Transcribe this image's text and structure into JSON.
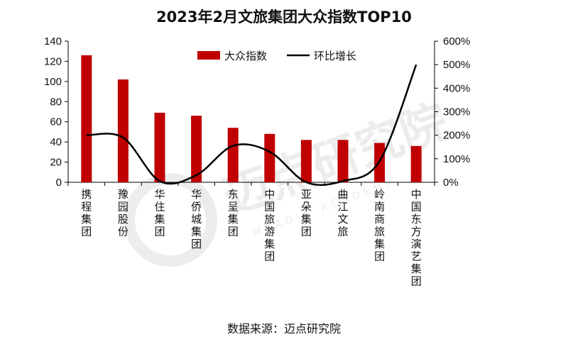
{
  "title": "2023年2月文旅集团大众指数TOP10",
  "source": "数据来源：迈点研究院",
  "watermark": {
    "cn": "迈点研究院",
    "en": "MEADIN ACADEMY"
  },
  "colors": {
    "bar": "#c00000",
    "line": "#000000",
    "axis": "#000000"
  },
  "chart_data": {
    "type": "bar",
    "categories": [
      "携程集团",
      "豫园股份",
      "华住集团",
      "华侨城集团",
      "东呈集团",
      "中国旅游集团",
      "亚朵集团",
      "曲江文旅",
      "岭南商旅集团",
      "中国东方演艺集团"
    ],
    "series": [
      {
        "name": "大众指数",
        "type": "bar",
        "axis": "left",
        "values": [
          126,
          102,
          69,
          66,
          54,
          48,
          42,
          42,
          39,
          36
        ]
      },
      {
        "name": "环比增长",
        "type": "line",
        "axis": "right",
        "unit": "%",
        "values": [
          200,
          190,
          5,
          30,
          155,
          130,
          0,
          5,
          90,
          500
        ]
      }
    ],
    "y_left": {
      "min": 0,
      "max": 140,
      "ticks": [
        "0",
        "20",
        "40",
        "60",
        "80",
        "100",
        "120",
        "140"
      ]
    },
    "y_right": {
      "min": 0,
      "max": 600,
      "ticks": [
        "0%",
        "100%",
        "200%",
        "300%",
        "400%",
        "500%",
        "600%"
      ]
    },
    "grid": false,
    "legend_position": "top-center"
  }
}
